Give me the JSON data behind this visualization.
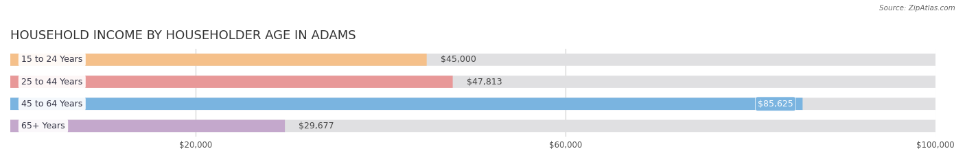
{
  "title": "HOUSEHOLD INCOME BY HOUSEHOLDER AGE IN ADAMS",
  "source": "Source: ZipAtlas.com",
  "categories": [
    "15 to 24 Years",
    "25 to 44 Years",
    "45 to 64 Years",
    "65+ Years"
  ],
  "values": [
    45000,
    47813,
    85625,
    29677
  ],
  "bar_colors": [
    "#f5c08a",
    "#e89898",
    "#7ab4e0",
    "#c4a8cc"
  ],
  "bar_bg_color": "#e2e2e2",
  "label_colors": [
    "#444444",
    "#444444",
    "#ffffff",
    "#444444"
  ],
  "value_labels": [
    "$45,000",
    "$47,813",
    "$85,625",
    "$29,677"
  ],
  "value_inside": [
    false,
    false,
    true,
    false
  ],
  "xmax": 100000,
  "xticks": [
    20000,
    60000,
    100000
  ],
  "xtick_labels": [
    "$20,000",
    "$60,000",
    "$100,000"
  ],
  "background_color": "#ffffff",
  "title_fontsize": 13,
  "label_fontsize": 9,
  "value_fontsize": 9,
  "bar_height": 0.55,
  "bar_gap": 1.0
}
